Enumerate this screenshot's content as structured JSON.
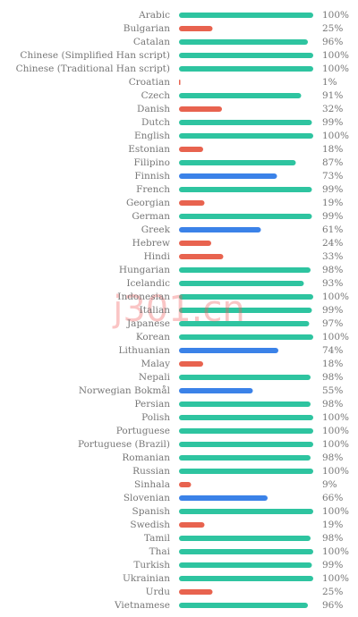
{
  "chart_data": {
    "type": "hbar",
    "categories": [
      "Arabic",
      "Bulgarian",
      "Catalan",
      "Chinese (Simplified Han script)",
      "Chinese (Traditional Han script)",
      "Croatian",
      "Czech",
      "Danish",
      "Dutch",
      "English",
      "Estonian",
      "Filipino",
      "Finnish",
      "French",
      "Georgian",
      "German",
      "Greek",
      "Hebrew",
      "Hindi",
      "Hungarian",
      "Icelandic",
      "Indonesian",
      "Italian",
      "Japanese",
      "Korean",
      "Lithuanian",
      "Malay",
      "Nepali",
      "Norwegian Bokmål",
      "Persian",
      "Polish",
      "Portuguese",
      "Portuguese (Brazil)",
      "Romanian",
      "Russian",
      "Sinhala",
      "Slovenian",
      "Spanish",
      "Swedish",
      "Tamil",
      "Thai",
      "Turkish",
      "Ukrainian",
      "Urdu",
      "Vietnamese"
    ],
    "values": [
      100,
      25,
      96,
      100,
      100,
      1,
      91,
      32,
      99,
      100,
      18,
      87,
      73,
      99,
      19,
      99,
      61,
      24,
      33,
      98,
      93,
      100,
      99,
      97,
      100,
      74,
      18,
      98,
      55,
      98,
      100,
      100,
      100,
      98,
      100,
      9,
      66,
      100,
      19,
      98,
      100,
      99,
      100,
      25,
      96
    ],
    "value_labels": [
      "100%",
      "25%",
      "96%",
      "100%",
      "100%",
      "1%",
      "91%",
      "32%",
      "99%",
      "100%",
      "18%",
      "87%",
      "73%",
      "99%",
      "19%",
      "99%",
      "61%",
      "24%",
      "33%",
      "98%",
      "93%",
      "100%",
      "99%",
      "97%",
      "100%",
      "74%",
      "18%",
      "98%",
      "55%",
      "98%",
      "100%",
      "100%",
      "100%",
      "98%",
      "100%",
      "9%",
      "66%",
      "100%",
      "19%",
      "98%",
      "100%",
      "99%",
      "100%",
      "25%",
      "96%"
    ],
    "colors": [
      "#2ec4a0",
      "#e8634f",
      "#2ec4a0",
      "#2ec4a0",
      "#2ec4a0",
      "#e8634f",
      "#2ec4a0",
      "#e8634f",
      "#2ec4a0",
      "#2ec4a0",
      "#e8634f",
      "#2ec4a0",
      "#3b82e8",
      "#2ec4a0",
      "#e8634f",
      "#2ec4a0",
      "#3b82e8",
      "#e8634f",
      "#e8634f",
      "#2ec4a0",
      "#2ec4a0",
      "#2ec4a0",
      "#2ec4a0",
      "#2ec4a0",
      "#2ec4a0",
      "#3b82e8",
      "#e8634f",
      "#2ec4a0",
      "#3b82e8",
      "#2ec4a0",
      "#2ec4a0",
      "#2ec4a0",
      "#2ec4a0",
      "#2ec4a0",
      "#2ec4a0",
      "#e8634f",
      "#3b82e8",
      "#2ec4a0",
      "#e8634f",
      "#2ec4a0",
      "#2ec4a0",
      "#2ec4a0",
      "#2ec4a0",
      "#e8634f",
      "#2ec4a0"
    ],
    "xlim": [
      0,
      100
    ],
    "watermark": "j301.cn"
  }
}
